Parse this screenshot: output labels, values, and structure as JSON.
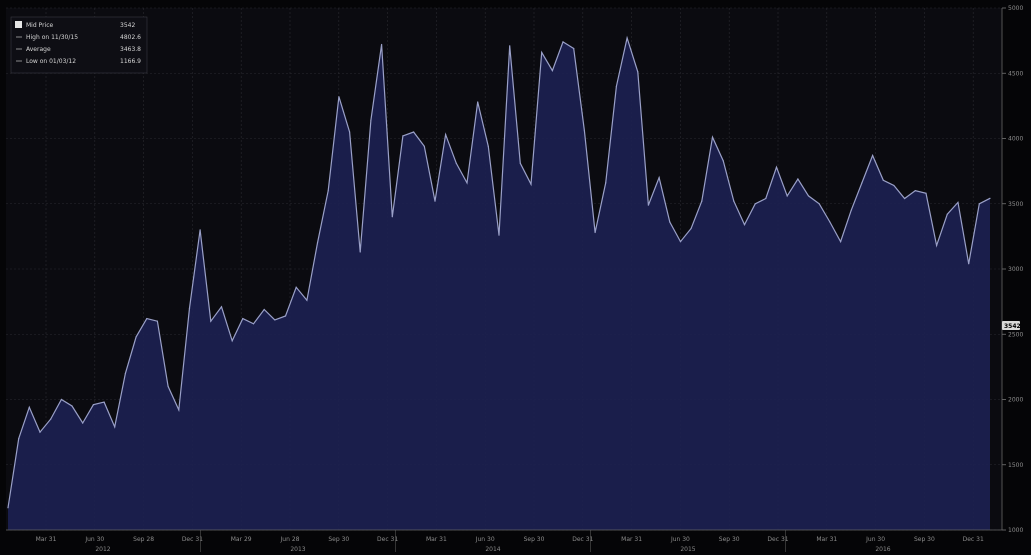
{
  "colors": {
    "background": "#050507",
    "plot_background": "#0b0b10",
    "area_fill": "#1c2150",
    "line": "#9aa0c8",
    "grid": "#2a2a30",
    "last_value_box": "#d9d9d9"
  },
  "legend": {
    "items": [
      {
        "label": "Mid Price",
        "value": "3542"
      },
      {
        "label": "High on 11/30/15",
        "value": "4802.6"
      },
      {
        "label": "Average",
        "value": "3463.8"
      },
      {
        "label": "Low on 01/03/12",
        "value": "1166.9"
      }
    ]
  },
  "last_value_label": "3542",
  "chart_data": {
    "type": "area",
    "title": "",
    "xlabel": "",
    "ylabel": "",
    "ylim": [
      1000,
      5000
    ],
    "y_ticks": [
      1000,
      1500,
      2000,
      2500,
      3000,
      3500,
      4000,
      4500,
      5000
    ],
    "y_tick_labels": [
      "1000",
      "1500",
      "2000",
      "2500",
      "3000",
      "3500",
      "4000",
      "4500",
      "5000"
    ],
    "x_tick_labels": [
      "Mar 31",
      "Jun 30",
      "Sep 28",
      "Dec 31",
      "Mar 29",
      "Jun 28",
      "Sep 30",
      "Dec 31",
      "Mar 31",
      "Jun 30",
      "Sep 30",
      "Dec 31",
      "Mar 31",
      "Jun 30",
      "Sep 30",
      "Dec 31",
      "Mar 31",
      "Jun 30",
      "Sep 30",
      "Dec 31"
    ],
    "year_labels": [
      "2012",
      "2013",
      "2014",
      "2015",
      "2016"
    ],
    "series": [
      {
        "values": [
          1170,
          1700,
          1940,
          1750,
          1850,
          2000,
          1950,
          1820,
          1960,
          1980,
          1790,
          2200,
          2480,
          2620,
          2600,
          2100,
          1920,
          2700,
          3300,
          2600,
          2710,
          2450,
          2620,
          2580,
          2690,
          2610,
          2640,
          2860,
          2760,
          3200,
          3600,
          4320,
          4050,
          3130,
          4140,
          4720,
          3400,
          4020,
          4050,
          3940,
          3520,
          4030,
          3810,
          3660,
          4280,
          3940,
          3260,
          4710,
          3810,
          3650,
          4660,
          4520,
          4740,
          4690,
          4060,
          3280,
          3660,
          4400,
          4770,
          4510,
          3490,
          3700,
          3360,
          3210,
          3310,
          3520,
          4010,
          3830,
          3520,
          3340,
          3500,
          3540,
          3780,
          3560,
          3690,
          3560,
          3500,
          3360,
          3210,
          3450,
          3660,
          3870,
          3680,
          3640,
          3540,
          3600,
          3580,
          3180,
          3420,
          3510,
          3040,
          3500,
          3542
        ]
      }
    ]
  }
}
